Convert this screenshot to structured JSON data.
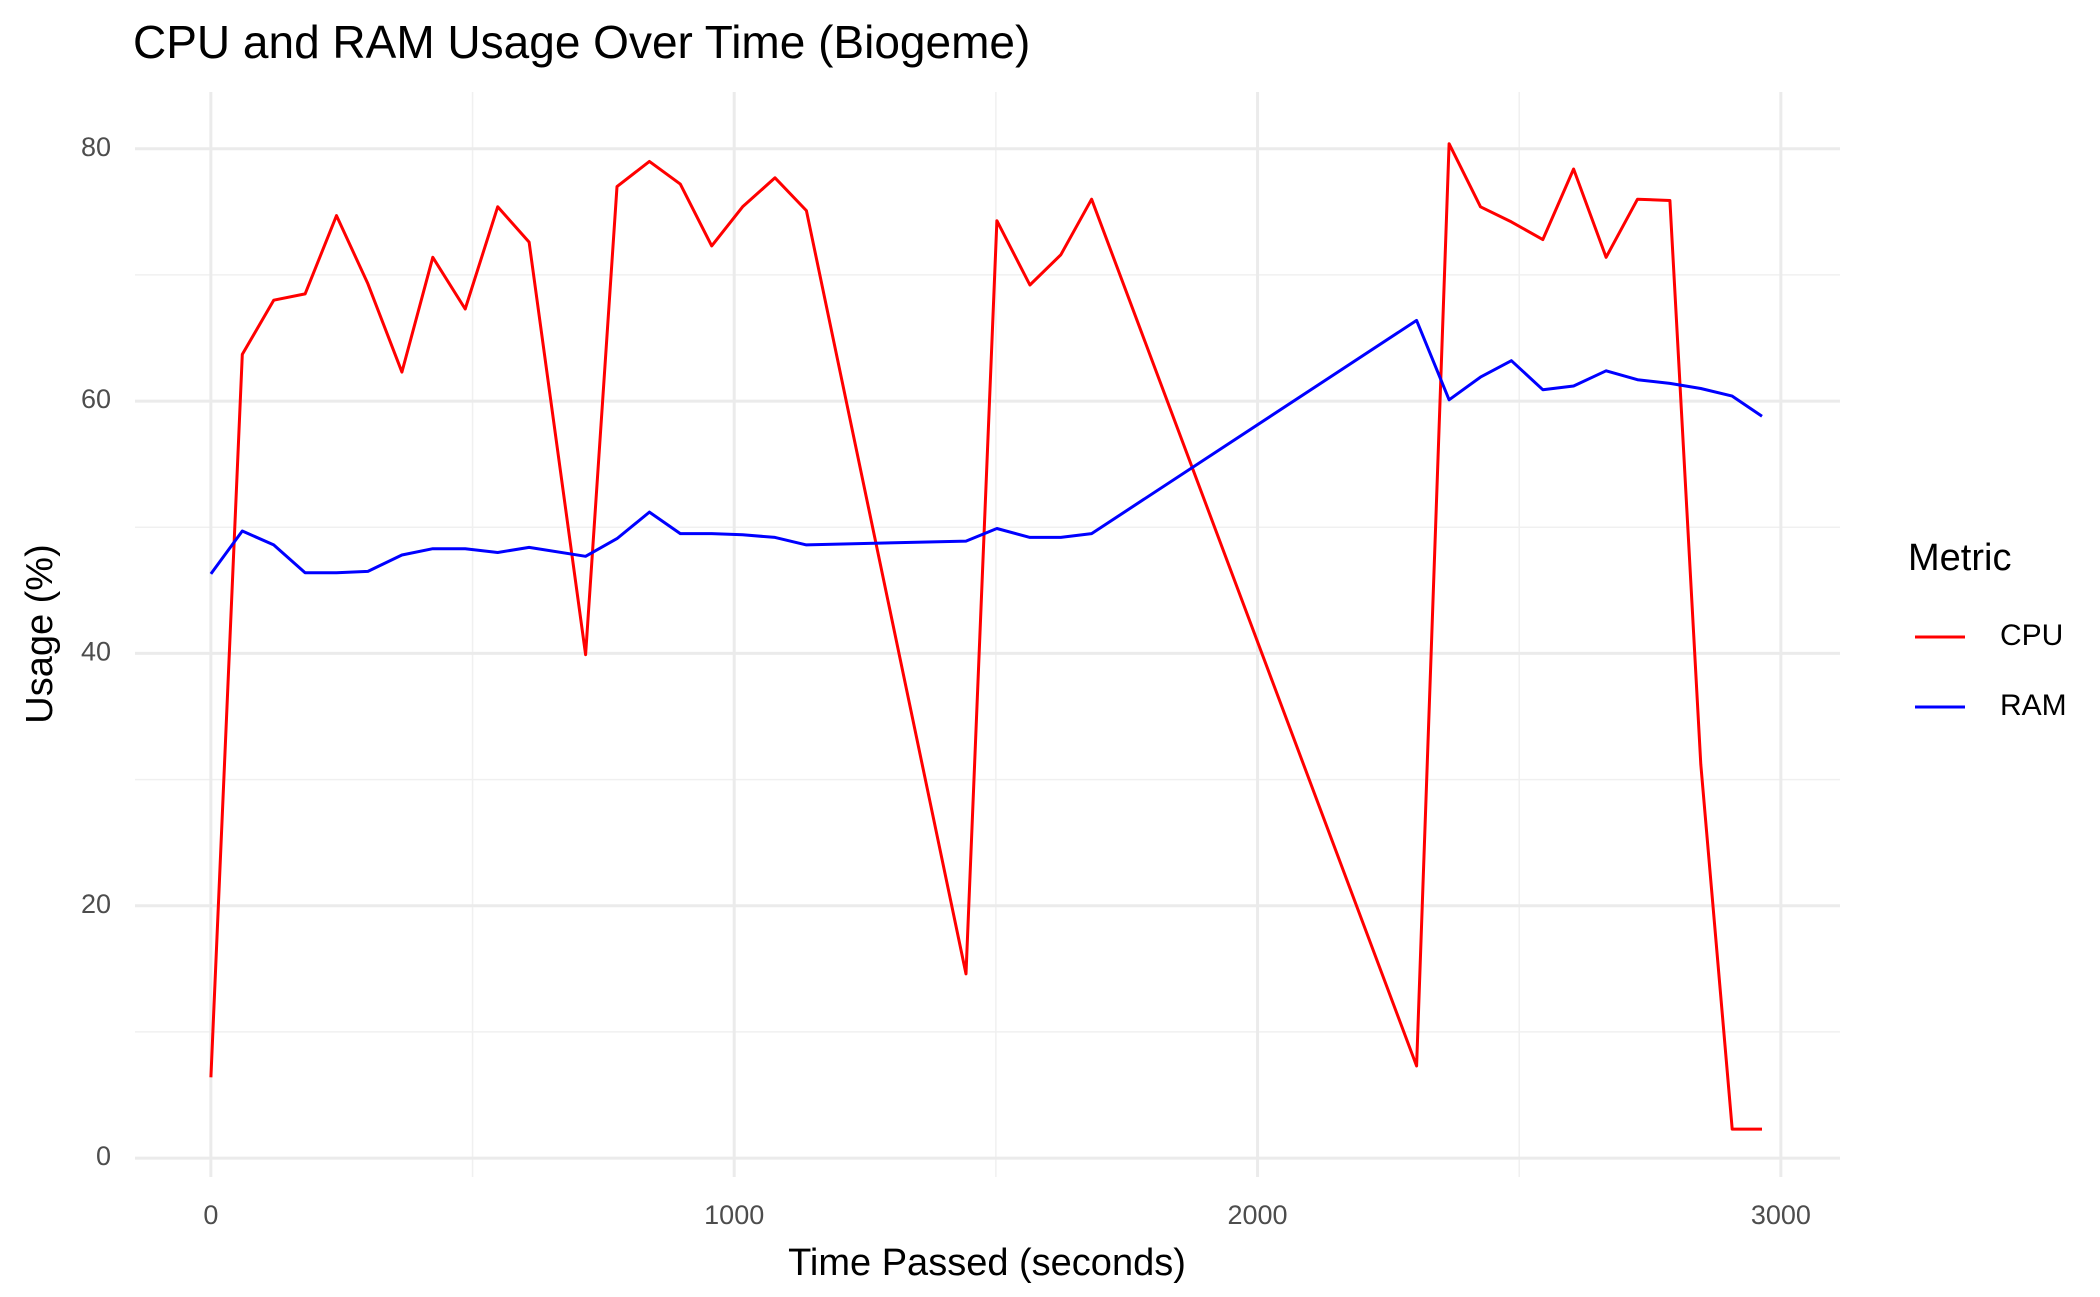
{
  "chart_data": {
    "type": "line",
    "title": "CPU and RAM Usage Over Time (Biogeme)",
    "x_label": "Time Passed (seconds)",
    "y_label": "Usage (%)",
    "legend_title": "Metric",
    "legend_position": "right",
    "grid": true,
    "xlim": [
      -145,
      3113
    ],
    "ylim": [
      -1.5,
      84.5
    ],
    "xticks": [
      0,
      1000,
      2000,
      3000
    ],
    "yticks": [
      0,
      20,
      40,
      60,
      80
    ],
    "xminor": [
      500,
      1500,
      2500
    ],
    "yminor": [
      10,
      30,
      50,
      70
    ],
    "x": [
      0,
      60,
      120,
      180,
      240,
      300,
      365,
      424,
      486,
      548,
      608,
      716,
      776,
      838,
      897,
      957,
      1016,
      1078,
      1138,
      1443,
      1502,
      1565,
      1624,
      1683,
      2304,
      2366,
      2426,
      2485,
      2545,
      2604,
      2666,
      2726,
      2788,
      2847,
      2907,
      2964
    ],
    "series": [
      {
        "name": "CPU",
        "color": "#ff0000",
        "values": [
          6.4,
          63.7,
          68.0,
          68.5,
          74.7,
          69.3,
          62.3,
          71.4,
          67.3,
          75.4,
          72.6,
          39.9,
          77.0,
          79.0,
          77.2,
          72.3,
          75.4,
          77.7,
          75.1,
          14.6,
          74.3,
          69.2,
          71.6,
          76.0,
          7.3,
          80.4,
          75.4,
          74.2,
          72.8,
          78.4,
          71.4,
          76.0,
          75.9,
          31.2,
          2.3,
          2.3
        ]
      },
      {
        "name": "RAM",
        "color": "#0000ff",
        "values": [
          46.3,
          49.7,
          48.6,
          46.4,
          46.4,
          46.5,
          47.8,
          48.3,
          48.3,
          48.0,
          48.4,
          47.7,
          49.1,
          51.2,
          49.5,
          49.5,
          49.4,
          49.2,
          48.6,
          48.9,
          49.9,
          49.2,
          49.2,
          49.5,
          66.4,
          60.1,
          61.9,
          63.2,
          60.9,
          61.2,
          62.4,
          61.7,
          61.4,
          61.0,
          60.4,
          58.8
        ]
      }
    ]
  }
}
